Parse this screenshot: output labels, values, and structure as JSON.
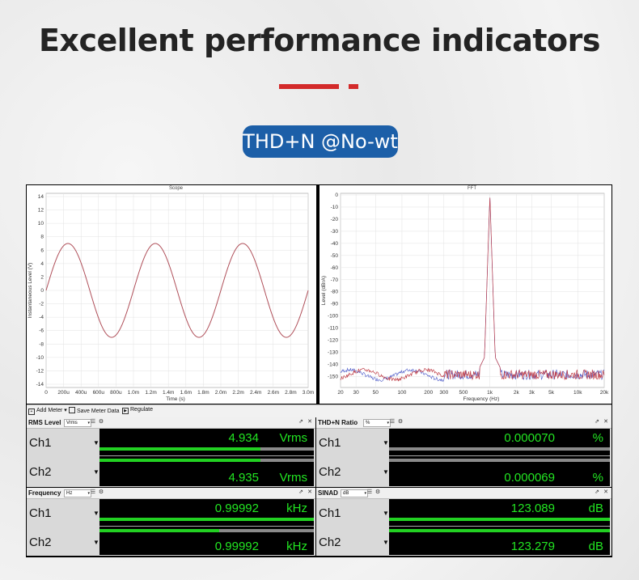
{
  "headline": "Excellent performance indicators",
  "badge": "THD+N @No-wt",
  "accent_color": "#d32a2a",
  "badge_color": "#1c5fa8",
  "scope": {
    "title": "Scope",
    "ylabel": "Instantaneous Level (V)",
    "xlabel": "Time (s)",
    "yticks": [
      "14",
      "12",
      "10",
      "8",
      "6",
      "4",
      "2",
      "0",
      "-2",
      "-4",
      "-6",
      "-8",
      "-10",
      "-12",
      "-14"
    ],
    "xticks": [
      "0",
      "200u",
      "400u",
      "600u",
      "800u",
      "1.0m",
      "1.2m",
      "1.4m",
      "1.6m",
      "1.8m",
      "2.0m",
      "2.2m",
      "2.4m",
      "2.6m",
      "2.8m",
      "3.0m"
    ]
  },
  "fft": {
    "title": "FFT",
    "ylabel": "Level (dBrA)",
    "xlabel": "Frequency (Hz)",
    "yticks": [
      "0",
      "-10",
      "-20",
      "-30",
      "-40",
      "-50",
      "-60",
      "-70",
      "-80",
      "-90",
      "-100",
      "-110",
      "-120",
      "-130",
      "-140",
      "-150"
    ],
    "xticks": [
      "20",
      "30",
      "50",
      "100",
      "200",
      "300",
      "500",
      "1k",
      "2k",
      "3k",
      "5k",
      "10k",
      "20k"
    ]
  },
  "chart_data": [
    {
      "type": "line",
      "title": "Scope",
      "xlabel": "Time (s)",
      "ylabel": "Instantaneous Level (V)",
      "xlim": [
        0,
        0.003
      ],
      "ylim": [
        -14,
        14
      ],
      "series": [
        {
          "amplitude_v": 7.0,
          "frequency_hz": 1000
        }
      ]
    },
    {
      "type": "line",
      "title": "FFT",
      "xlabel": "Frequency (Hz)",
      "ylabel": "Level (dBrA)",
      "xlim": [
        20,
        20000
      ],
      "ylim": [
        -155,
        0
      ],
      "xscale": "log",
      "series": [
        {
          "peak_frequency_hz": 1000,
          "peak_level_db": 0,
          "noise_floor_db": -150
        }
      ]
    }
  ],
  "toolbar": {
    "add_meter": "Add Meter",
    "save_meter_data": "Save Meter Data",
    "regulate": "Regulate"
  },
  "meters": {
    "rms": {
      "name": "RMS Level",
      "unit_select": "Vrms",
      "ch1": {
        "label": "Ch1",
        "value": "4.934",
        "unit": "Vrms",
        "bar_fraction": 0.75
      },
      "ch2": {
        "label": "Ch2",
        "value": "4.935",
        "unit": "Vrms",
        "bar_fraction": 0.75
      }
    },
    "thd": {
      "name": "THD+N Ratio",
      "unit_select": "%",
      "ch1": {
        "label": "Ch1",
        "value": "0.000070",
        "unit": "%",
        "bar_fraction": 0.0
      },
      "ch2": {
        "label": "Ch2",
        "value": "0.000069",
        "unit": "%",
        "bar_fraction": 0.0
      }
    },
    "freq": {
      "name": "Frequency",
      "unit_select": "Hz",
      "ch1": {
        "label": "Ch1",
        "value": "0.99992",
        "unit": "kHz",
        "bar_fraction": 1.0
      },
      "ch2": {
        "label": "Ch2",
        "value": "0.99992",
        "unit": "kHz",
        "bar_fraction": 0.56
      }
    },
    "sinad": {
      "name": "SINAD",
      "unit_select": "dB",
      "ch1": {
        "label": "Ch1",
        "value": "123.089",
        "unit": "dB",
        "bar_fraction": 1.0
      },
      "ch2": {
        "label": "Ch2",
        "value": "123.279",
        "unit": "dB",
        "bar_fraction": 1.0
      }
    }
  }
}
